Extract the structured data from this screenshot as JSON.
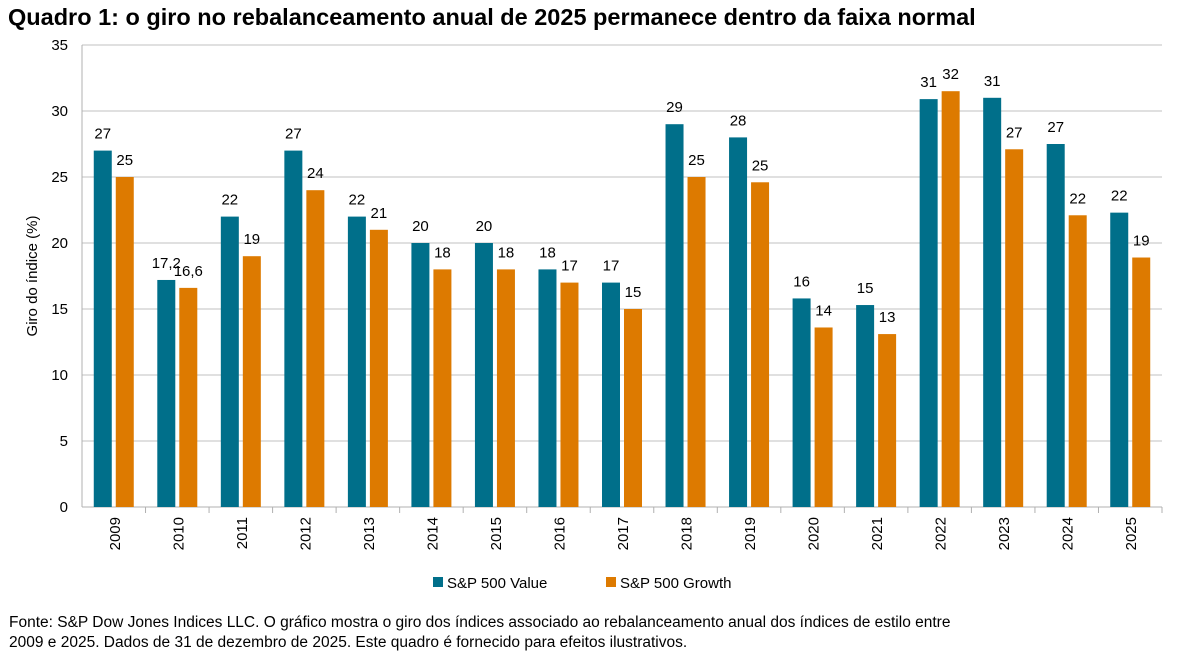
{
  "title": "Quadro 1: o giro no rebalanceamento anual de 2025 permanece dentro da faixa normal",
  "footnote": {
    "line1": "Fonte: S&P Dow Jones Indices LLC. O gráfico mostra o giro dos índices associado ao rebalanceamento anual dos índices de estilo entre",
    "line2": "2009 e 2025. Dados de 31 de dezembro de 2025. Este quadro é fornecido para efeitos ilustrativos."
  },
  "chart_data": {
    "type": "bar",
    "title": "Quadro 1: o giro no rebalanceamento anual de 2025 permanece dentro da faixa normal",
    "xlabel": "",
    "ylabel": "Giro do índice (%)",
    "ylim": [
      0,
      35
    ],
    "yticks": [
      0,
      5,
      10,
      15,
      20,
      25,
      30,
      35
    ],
    "grid": true,
    "legend_position": "bottom",
    "categories": [
      "2009",
      "2010",
      "2011",
      "2012",
      "2013",
      "2014",
      "2015",
      "2016",
      "2017",
      "2018",
      "2019",
      "2020",
      "2021",
      "2022",
      "2023",
      "2024",
      "2025"
    ],
    "series": [
      {
        "name": "S&P 500 Value",
        "color": "#006F8A",
        "values": [
          27,
          17.2,
          22,
          27,
          22,
          20,
          20,
          18,
          17,
          29,
          28,
          15.8,
          15.3,
          30.9,
          31.0,
          27.5,
          22.3
        ],
        "labels": [
          "27",
          "17,2",
          "22",
          "27",
          "22",
          "20",
          "20",
          "18",
          "17",
          "29",
          "28",
          "16",
          "15",
          "31",
          "31",
          "27",
          "22"
        ]
      },
      {
        "name": "S&P 500 Growth",
        "color": "#DD7A00",
        "values": [
          25,
          16.6,
          19,
          24,
          21,
          18,
          18,
          17,
          15,
          25,
          24.6,
          13.6,
          13.1,
          31.5,
          27.1,
          22.1,
          18.9
        ],
        "labels": [
          "25",
          "16,6",
          "19",
          "24",
          "21",
          "18",
          "18",
          "17",
          "15",
          "25",
          "25",
          "14",
          "13",
          "32",
          "27",
          "22",
          "19"
        ]
      }
    ]
  }
}
